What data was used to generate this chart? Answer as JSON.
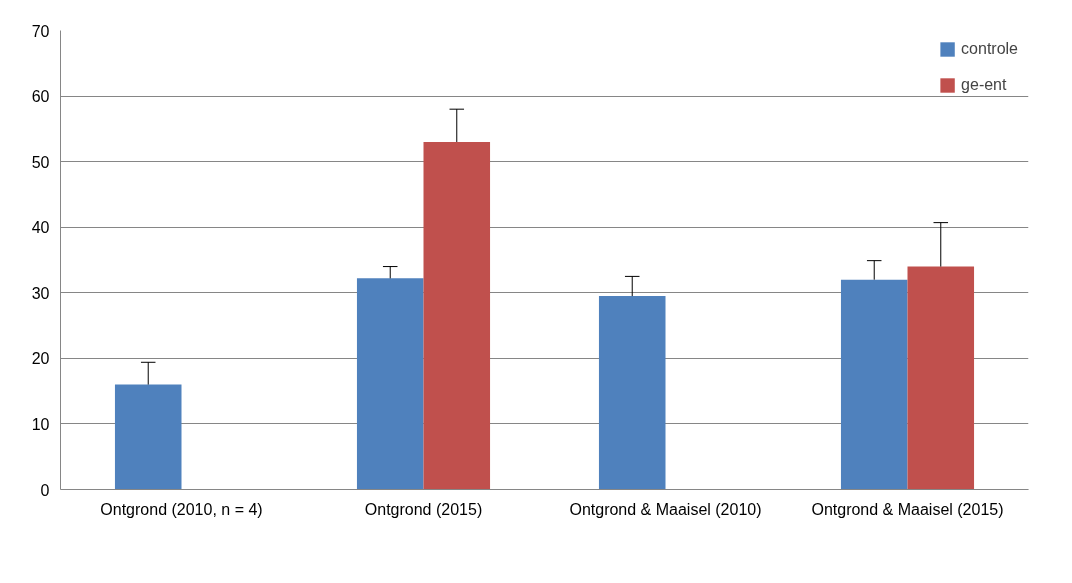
{
  "chart_data": {
    "type": "bar",
    "categories": [
      "Ontgrond (2010, n = 4)",
      "Ontgrond (2015)",
      "Ontgrond & Maaisel (2010)",
      "Ontgrond & Maaisel (2015)"
    ],
    "series": [
      {
        "name": "controle",
        "color": "#4f81bd",
        "values": [
          16,
          32.2,
          29.5,
          32
        ],
        "errors": [
          3.4,
          1.8,
          3,
          2.9
        ]
      },
      {
        "name": "ge-ent",
        "color": "#c0504d",
        "values": [
          null,
          53,
          null,
          34
        ],
        "errors": [
          null,
          5,
          null,
          6.7
        ]
      }
    ],
    "ylim": [
      0,
      70
    ],
    "yticks": [
      0,
      10,
      20,
      30,
      40,
      50,
      60,
      70
    ],
    "grid": "y",
    "legend": "top right"
  }
}
